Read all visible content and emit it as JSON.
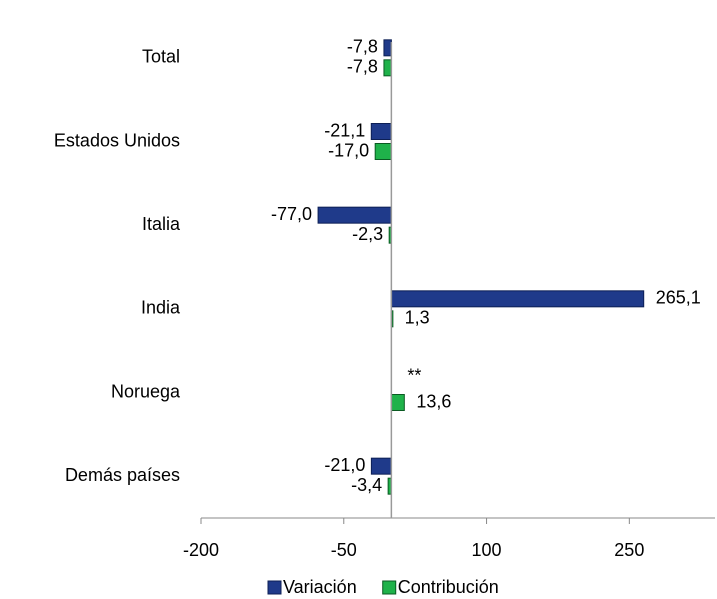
{
  "chart_data": {
    "type": "bar",
    "orientation": "horizontal",
    "categories": [
      "Total",
      "Estados Unidos",
      "Italia",
      "India",
      "Noruega",
      "Demás países"
    ],
    "series": [
      {
        "name": "Variación",
        "color": "#1f3a8a",
        "values": [
          -7.8,
          -21.1,
          -77.0,
          265.1,
          null,
          -21.0
        ],
        "value_labels": [
          "-7,8",
          "-21,1",
          "-77,0",
          "265,1",
          "**",
          "-21,0"
        ]
      },
      {
        "name": "Contribución",
        "color": "#1fb24a",
        "values": [
          -7.8,
          -17.0,
          -2.3,
          1.3,
          13.6,
          -3.4
        ],
        "value_labels": [
          "-7,8",
          "-17,0",
          "-2,3",
          "1,3",
          "13,6",
          "-3,4"
        ]
      }
    ],
    "xlim": [
      -200,
      340
    ],
    "xticks": [
      -200,
      -50,
      100,
      250
    ],
    "legend": "bottom"
  }
}
